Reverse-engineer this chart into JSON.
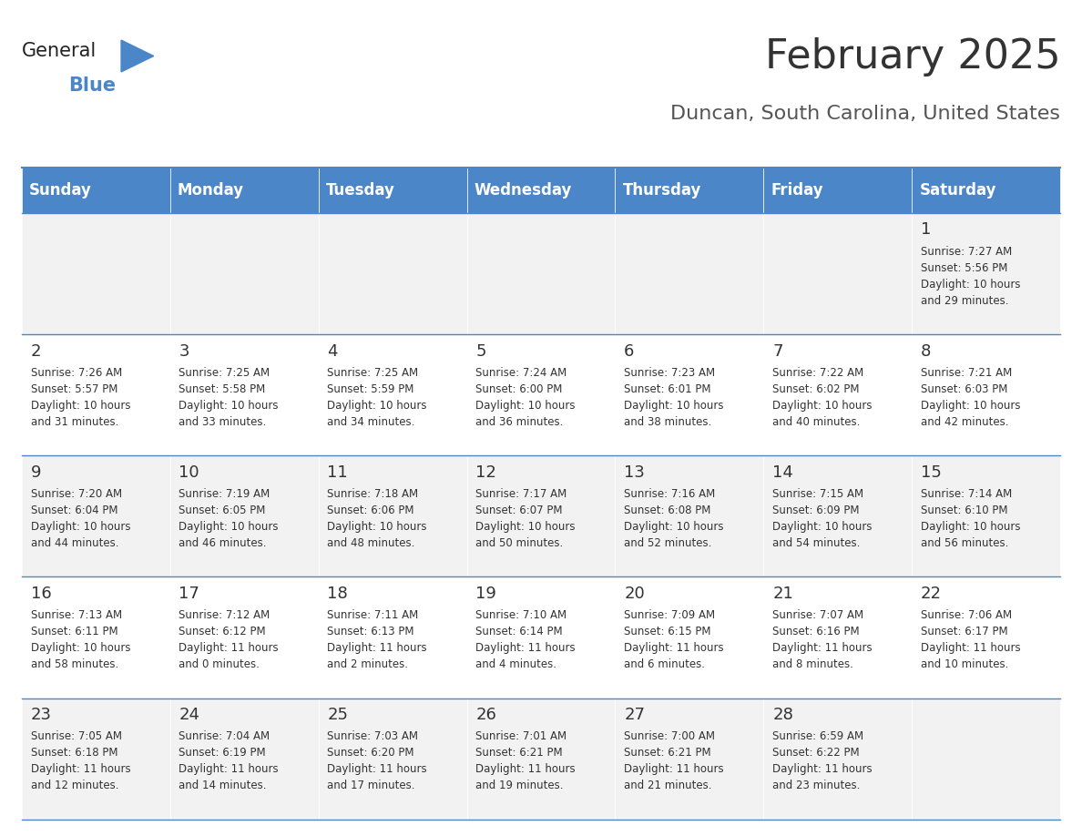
{
  "title": "February 2025",
  "subtitle": "Duncan, South Carolina, United States",
  "days_of_week": [
    "Sunday",
    "Monday",
    "Tuesday",
    "Wednesday",
    "Thursday",
    "Friday",
    "Saturday"
  ],
  "header_bg": "#4a86c8",
  "header_text": "#ffffff",
  "row_bg_odd": "#f2f2f2",
  "row_bg_even": "#ffffff",
  "cell_border": "#4a86c8",
  "day_number_color": "#333333",
  "text_color": "#333333",
  "title_color": "#333333",
  "subtitle_color": "#555555",
  "logo_general_color": "#222222",
  "logo_blue_color": "#4a86c8",
  "calendar": [
    [
      {
        "day": null,
        "info": ""
      },
      {
        "day": null,
        "info": ""
      },
      {
        "day": null,
        "info": ""
      },
      {
        "day": null,
        "info": ""
      },
      {
        "day": null,
        "info": ""
      },
      {
        "day": null,
        "info": ""
      },
      {
        "day": 1,
        "info": "Sunrise: 7:27 AM\nSunset: 5:56 PM\nDaylight: 10 hours\nand 29 minutes."
      }
    ],
    [
      {
        "day": 2,
        "info": "Sunrise: 7:26 AM\nSunset: 5:57 PM\nDaylight: 10 hours\nand 31 minutes."
      },
      {
        "day": 3,
        "info": "Sunrise: 7:25 AM\nSunset: 5:58 PM\nDaylight: 10 hours\nand 33 minutes."
      },
      {
        "day": 4,
        "info": "Sunrise: 7:25 AM\nSunset: 5:59 PM\nDaylight: 10 hours\nand 34 minutes."
      },
      {
        "day": 5,
        "info": "Sunrise: 7:24 AM\nSunset: 6:00 PM\nDaylight: 10 hours\nand 36 minutes."
      },
      {
        "day": 6,
        "info": "Sunrise: 7:23 AM\nSunset: 6:01 PM\nDaylight: 10 hours\nand 38 minutes."
      },
      {
        "day": 7,
        "info": "Sunrise: 7:22 AM\nSunset: 6:02 PM\nDaylight: 10 hours\nand 40 minutes."
      },
      {
        "day": 8,
        "info": "Sunrise: 7:21 AM\nSunset: 6:03 PM\nDaylight: 10 hours\nand 42 minutes."
      }
    ],
    [
      {
        "day": 9,
        "info": "Sunrise: 7:20 AM\nSunset: 6:04 PM\nDaylight: 10 hours\nand 44 minutes."
      },
      {
        "day": 10,
        "info": "Sunrise: 7:19 AM\nSunset: 6:05 PM\nDaylight: 10 hours\nand 46 minutes."
      },
      {
        "day": 11,
        "info": "Sunrise: 7:18 AM\nSunset: 6:06 PM\nDaylight: 10 hours\nand 48 minutes."
      },
      {
        "day": 12,
        "info": "Sunrise: 7:17 AM\nSunset: 6:07 PM\nDaylight: 10 hours\nand 50 minutes."
      },
      {
        "day": 13,
        "info": "Sunrise: 7:16 AM\nSunset: 6:08 PM\nDaylight: 10 hours\nand 52 minutes."
      },
      {
        "day": 14,
        "info": "Sunrise: 7:15 AM\nSunset: 6:09 PM\nDaylight: 10 hours\nand 54 minutes."
      },
      {
        "day": 15,
        "info": "Sunrise: 7:14 AM\nSunset: 6:10 PM\nDaylight: 10 hours\nand 56 minutes."
      }
    ],
    [
      {
        "day": 16,
        "info": "Sunrise: 7:13 AM\nSunset: 6:11 PM\nDaylight: 10 hours\nand 58 minutes."
      },
      {
        "day": 17,
        "info": "Sunrise: 7:12 AM\nSunset: 6:12 PM\nDaylight: 11 hours\nand 0 minutes."
      },
      {
        "day": 18,
        "info": "Sunrise: 7:11 AM\nSunset: 6:13 PM\nDaylight: 11 hours\nand 2 minutes."
      },
      {
        "day": 19,
        "info": "Sunrise: 7:10 AM\nSunset: 6:14 PM\nDaylight: 11 hours\nand 4 minutes."
      },
      {
        "day": 20,
        "info": "Sunrise: 7:09 AM\nSunset: 6:15 PM\nDaylight: 11 hours\nand 6 minutes."
      },
      {
        "day": 21,
        "info": "Sunrise: 7:07 AM\nSunset: 6:16 PM\nDaylight: 11 hours\nand 8 minutes."
      },
      {
        "day": 22,
        "info": "Sunrise: 7:06 AM\nSunset: 6:17 PM\nDaylight: 11 hours\nand 10 minutes."
      }
    ],
    [
      {
        "day": 23,
        "info": "Sunrise: 7:05 AM\nSunset: 6:18 PM\nDaylight: 11 hours\nand 12 minutes."
      },
      {
        "day": 24,
        "info": "Sunrise: 7:04 AM\nSunset: 6:19 PM\nDaylight: 11 hours\nand 14 minutes."
      },
      {
        "day": 25,
        "info": "Sunrise: 7:03 AM\nSunset: 6:20 PM\nDaylight: 11 hours\nand 17 minutes."
      },
      {
        "day": 26,
        "info": "Sunrise: 7:01 AM\nSunset: 6:21 PM\nDaylight: 11 hours\nand 19 minutes."
      },
      {
        "day": 27,
        "info": "Sunrise: 7:00 AM\nSunset: 6:21 PM\nDaylight: 11 hours\nand 21 minutes."
      },
      {
        "day": 28,
        "info": "Sunrise: 6:59 AM\nSunset: 6:22 PM\nDaylight: 11 hours\nand 23 minutes."
      },
      {
        "day": null,
        "info": ""
      }
    ]
  ]
}
